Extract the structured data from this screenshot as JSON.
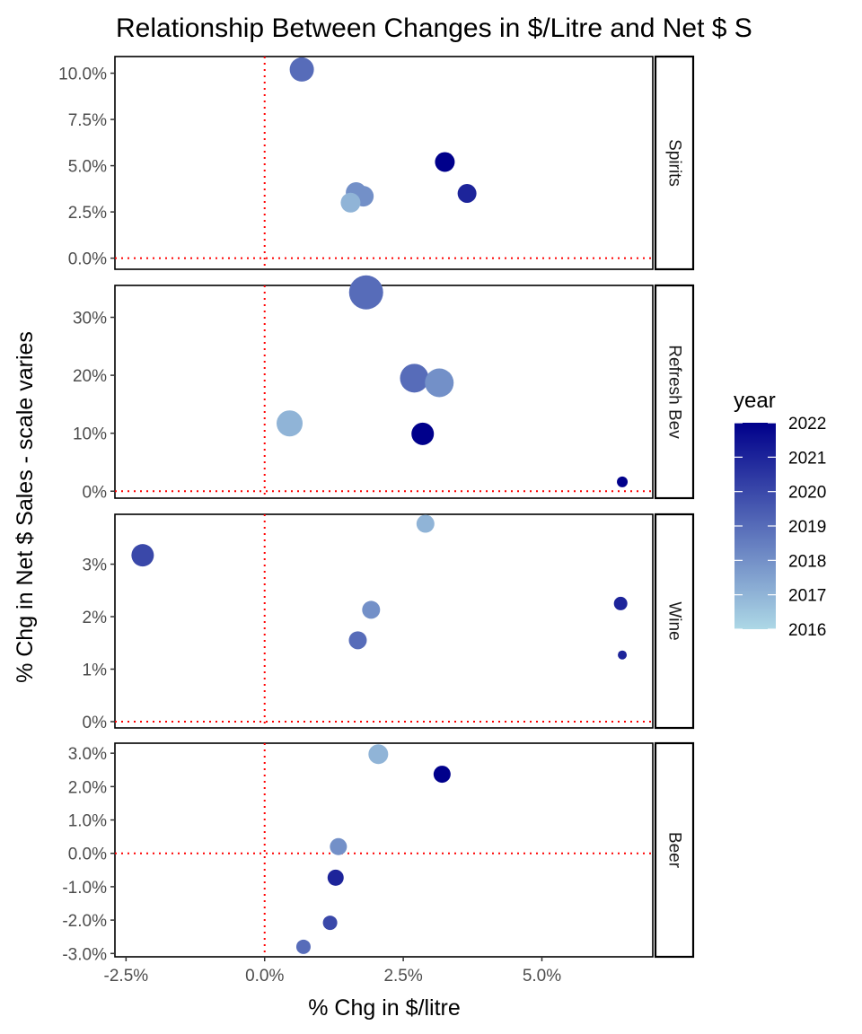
{
  "chart_data": {
    "type": "scatter",
    "title": "Relationship Between Changes in $/Litre and Net $ S",
    "xlabel": "% Chg in $/litre",
    "ylabel": "% Chg in Net $ Sales - scale varies",
    "xlim": [
      -2.7,
      7.0
    ],
    "x_ticks": [
      -2.5,
      0.0,
      2.5,
      5.0
    ],
    "x_tick_labels": [
      "-2.5%",
      "0.0%",
      "2.5%",
      "5.0%"
    ],
    "reference_lines": {
      "x": 0,
      "y": 0,
      "color": "#ff0000",
      "style": "dotted"
    },
    "color_scale": {
      "variable": "year",
      "min_year": 2016,
      "max_year": 2022,
      "low_color": "#add8e6",
      "high_color": "#00008b"
    },
    "legend": {
      "title": "year",
      "placement": "right",
      "labels": [
        "2022",
        "2021",
        "2020",
        "2019",
        "2018",
        "2017",
        "2016"
      ]
    },
    "facets": [
      {
        "name": "Spirits",
        "ylim": [
          -0.6,
          10.9
        ],
        "y_ticks": [
          0.0,
          2.5,
          5.0,
          7.5,
          10.0
        ],
        "y_tick_labels": [
          "0.0%",
          "2.5%",
          "5.0%",
          "7.5%",
          "10.0%"
        ],
        "points": [
          {
            "year": 2019,
            "x": 0.67,
            "y": 10.2,
            "size": 27
          },
          {
            "year": 2022,
            "x": 3.25,
            "y": 5.2,
            "size": 22
          },
          {
            "year": 2021,
            "x": 3.65,
            "y": 3.5,
            "size": 21
          },
          {
            "year": 2018,
            "x": 1.65,
            "y": 3.55,
            "size": 23
          },
          {
            "year": 2018,
            "x": 1.78,
            "y": 3.35,
            "size": 23
          },
          {
            "year": 2017,
            "x": 1.55,
            "y": 3.0,
            "size": 22
          }
        ]
      },
      {
        "name": "Refresh Bev",
        "ylim": [
          -1.2,
          35.5
        ],
        "y_ticks": [
          0,
          10,
          20,
          30
        ],
        "y_tick_labels": [
          "0%",
          "10%",
          "20%",
          "30%"
        ],
        "points": [
          {
            "year": 2019,
            "x": 1.83,
            "y": 34.3,
            "size": 38
          },
          {
            "year": 2019,
            "x": 2.7,
            "y": 19.5,
            "size": 32
          },
          {
            "year": 2018,
            "x": 3.15,
            "y": 18.7,
            "size": 32
          },
          {
            "year": 2017,
            "x": 0.45,
            "y": 11.7,
            "size": 29
          },
          {
            "year": 2022,
            "x": 2.85,
            "y": 9.9,
            "size": 25
          },
          {
            "year": 2022,
            "x": 6.45,
            "y": 1.6,
            "size": 12
          }
        ]
      },
      {
        "name": "Wine",
        "ylim": [
          -0.12,
          3.95
        ],
        "y_ticks": [
          0,
          1,
          2,
          3
        ],
        "y_tick_labels": [
          "0%",
          "1%",
          "2%",
          "3%"
        ],
        "points": [
          {
            "year": 2017,
            "x": 2.9,
            "y": 3.77,
            "size": 20
          },
          {
            "year": 2020,
            "x": -2.2,
            "y": 3.17,
            "size": 25
          },
          {
            "year": 2018,
            "x": 1.92,
            "y": 2.13,
            "size": 20
          },
          {
            "year": 2021,
            "x": 6.42,
            "y": 2.25,
            "size": 15
          },
          {
            "year": 2019,
            "x": 1.68,
            "y": 1.55,
            "size": 20
          },
          {
            "year": 2021,
            "x": 6.45,
            "y": 1.27,
            "size": 10
          }
        ]
      },
      {
        "name": "Beer",
        "ylim": [
          -3.1,
          3.3
        ],
        "y_ticks": [
          3.0,
          2.0,
          1.0,
          0.0,
          -1.0,
          -2.0,
          -3.0
        ],
        "y_tick_labels": [
          "3.0%",
          "2.0%",
          "1.0%",
          "0.0%",
          "-1.0%",
          "-2.0%",
          "-3.0%"
        ],
        "points": [
          {
            "year": 2017,
            "x": 2.05,
            "y": 2.97,
            "size": 22
          },
          {
            "year": 2022,
            "x": 3.2,
            "y": 2.37,
            "size": 19
          },
          {
            "year": 2018,
            "x": 1.33,
            "y": 0.2,
            "size": 19
          },
          {
            "year": 2021,
            "x": 1.28,
            "y": -0.73,
            "size": 18
          },
          {
            "year": 2020,
            "x": 1.18,
            "y": -2.08,
            "size": 16
          },
          {
            "year": 2019,
            "x": 0.7,
            "y": -2.8,
            "size": 16
          }
        ]
      }
    ]
  }
}
